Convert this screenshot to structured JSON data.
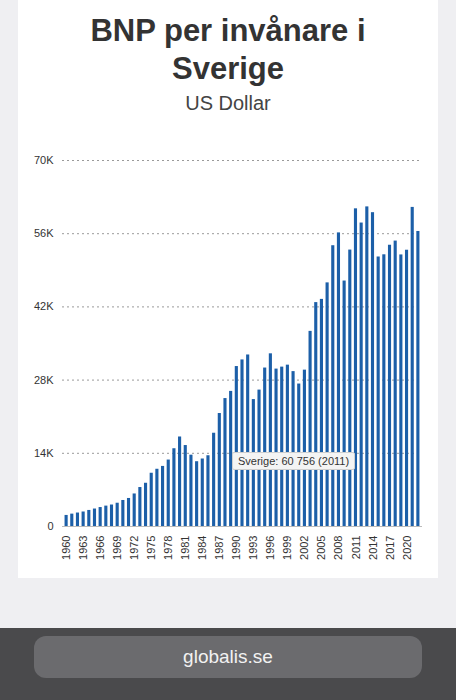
{
  "chart_data": {
    "type": "bar",
    "title": "BNP per invånare i Sverige",
    "subtitle": "US Dollar",
    "x": [
      1960,
      1961,
      1962,
      1963,
      1964,
      1965,
      1966,
      1967,
      1968,
      1969,
      1970,
      1971,
      1972,
      1973,
      1974,
      1975,
      1976,
      1977,
      1978,
      1979,
      1980,
      1981,
      1982,
      1983,
      1984,
      1985,
      1986,
      1987,
      1988,
      1989,
      1990,
      1991,
      1992,
      1993,
      1994,
      1995,
      1996,
      1997,
      1998,
      1999,
      2000,
      2001,
      2002,
      2003,
      2004,
      2005,
      2006,
      2007,
      2008,
      2009,
      2010,
      2011,
      2012,
      2013,
      2014,
      2015,
      2016,
      2017,
      2018,
      2019,
      2020,
      2021,
      2022
    ],
    "values": [
      2114,
      2366,
      2577,
      2773,
      3070,
      3341,
      3626,
      3899,
      4109,
      4451,
      4976,
      5362,
      6222,
      7454,
      8269,
      10184,
      10946,
      11491,
      12708,
      14873,
      17120,
      15484,
      13642,
      12391,
      12910,
      13533,
      17837,
      21609,
      24468,
      25838,
      30593,
      31858,
      32805,
      24275,
      26089,
      30306,
      33027,
      30105,
      30483,
      30859,
      29624,
      27247,
      29905,
      37319,
      42822,
      43437,
      46594,
      53701,
      56153,
      46947,
      52869,
      60756,
      58038,
      61127,
      60020,
      51545,
      51965,
      53792,
      54589,
      51939,
      52838,
      61029,
      56424
    ],
    "color": "#1c5fa8",
    "ylim": [
      0,
      70000
    ],
    "yticks": [
      0,
      {
        "value": 14000,
        "label": "14K"
      },
      {
        "value": 28000,
        "label": "28K"
      },
      {
        "value": 42000,
        "label": "42K"
      },
      {
        "value": 56000,
        "label": "56K"
      },
      {
        "value": 70000,
        "label": "70K"
      }
    ],
    "xticks": [
      1960,
      1963,
      1966,
      1969,
      1972,
      1975,
      1978,
      1981,
      1984,
      1987,
      1990,
      1993,
      1996,
      1999,
      2002,
      2005,
      2008,
      2011,
      2014,
      2017,
      2020
    ],
    "grid": true,
    "annotations": [
      "Sverige: 60 756 (2011)"
    ],
    "source": "globalis.se"
  }
}
